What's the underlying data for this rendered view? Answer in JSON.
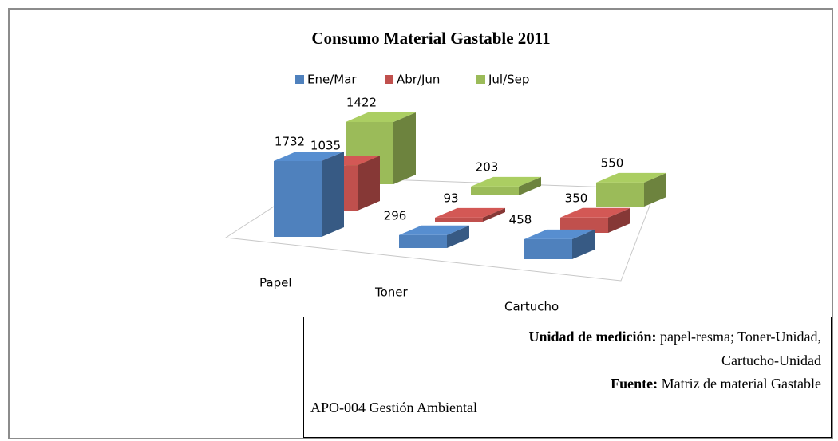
{
  "chart_data": {
    "type": "bar3d",
    "title": "Consumo Material Gastable 2011",
    "categories": [
      "Papel",
      "Toner",
      "Cartucho"
    ],
    "series": [
      {
        "name": "Ene/Mar",
        "color": "#4f81bd",
        "values": [
          1732,
          296,
          458
        ]
      },
      {
        "name": "Abr/Jun",
        "color": "#c0504d",
        "values": [
          1035,
          93,
          350
        ]
      },
      {
        "name": "Jul/Sep",
        "color": "#9bbb59",
        "values": [
          1422,
          203,
          550
        ]
      }
    ]
  },
  "note": {
    "unit_label": "Unidad de medición:",
    "unit_line1": "papel-resma; Toner-Unidad,",
    "unit_line2": "Cartucho-Unidad",
    "source_label": "Fuente:",
    "source_text": "Matriz de material Gastable",
    "code": "APO-004 Gestión Ambiental"
  }
}
